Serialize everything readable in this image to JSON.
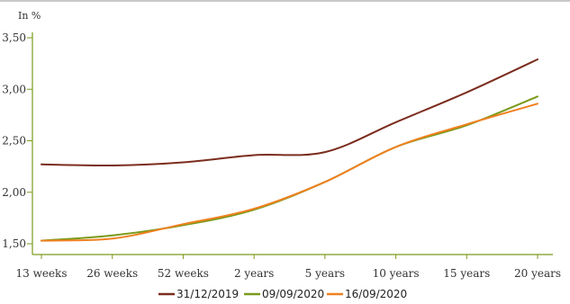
{
  "chart_data": {
    "type": "line",
    "unit_label": "In %",
    "x": [
      "13 weeks",
      "26 weeks",
      "52 weeks",
      "2 years",
      "5 years",
      "10 years",
      "15 years",
      "20 years"
    ],
    "y_ticks": [
      "1,50",
      "2,00",
      "2,50",
      "3,00",
      "3,50"
    ],
    "ylim": [
      1.5,
      3.55
    ],
    "grid": false,
    "legend_position": "bottom",
    "series": [
      {
        "name": "31/12/2019",
        "color": "#7b2d1e",
        "values": [
          2.27,
          2.26,
          2.29,
          2.36,
          2.39,
          2.68,
          2.97,
          3.29
        ]
      },
      {
        "name": "09/09/2020",
        "color": "#7a9a1a",
        "values": [
          1.53,
          1.58,
          1.68,
          1.83,
          2.1,
          2.44,
          2.65,
          2.93
        ]
      },
      {
        "name": "16/09/2020",
        "color": "#f08020",
        "values": [
          1.53,
          1.55,
          1.69,
          1.84,
          2.1,
          2.44,
          2.66,
          2.86
        ]
      }
    ]
  }
}
